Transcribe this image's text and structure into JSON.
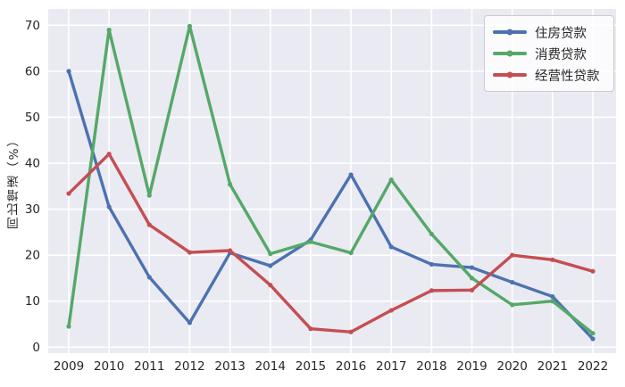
{
  "figure": {
    "fig_background": "#FFFFFF",
    "plot_background": "#EAEAF2",
    "grid_color": "#FFFFFF",
    "text_color": "#262626"
  },
  "legend": {
    "items": [
      {
        "label": "住房贷款",
        "color": "#4C72B0"
      },
      {
        "label": "消费贷款",
        "color": "#55A868"
      },
      {
        "label": "经营性贷款",
        "color": "#C44E52"
      }
    ]
  },
  "chart_data": {
    "type": "line",
    "title": "",
    "xlabel": "",
    "ylabel": "同比增速（%）",
    "x": [
      2009,
      2010,
      2011,
      2012,
      2013,
      2014,
      2015,
      2016,
      2017,
      2018,
      2019,
      2020,
      2021,
      2022
    ],
    "series": [
      {
        "name": "住房贷款",
        "color": "#4C72B0",
        "values": [
          60.0,
          30.5,
          15.2,
          5.3,
          20.5,
          17.7,
          23.3,
          37.5,
          21.8,
          18.0,
          17.3,
          14.1,
          11.0,
          1.8
        ]
      },
      {
        "name": "消费贷款",
        "color": "#55A868",
        "values": [
          4.5,
          69.0,
          33.0,
          69.8,
          35.4,
          20.3,
          22.9,
          20.5,
          36.4,
          24.6,
          15.0,
          9.2,
          10.0,
          3.0
        ]
      },
      {
        "name": "经营性贷款",
        "color": "#C44E52",
        "values": [
          33.4,
          42.0,
          26.6,
          20.6,
          21.0,
          13.5,
          4.0,
          3.3,
          8.0,
          12.3,
          12.4,
          20.0,
          19.0,
          16.5
        ]
      }
    ],
    "y_ticks": [
      0,
      10,
      20,
      30,
      40,
      50,
      60,
      70
    ],
    "ylim": [
      -1.5,
      73.5
    ],
    "grid": true,
    "legend_position": "upper right"
  }
}
